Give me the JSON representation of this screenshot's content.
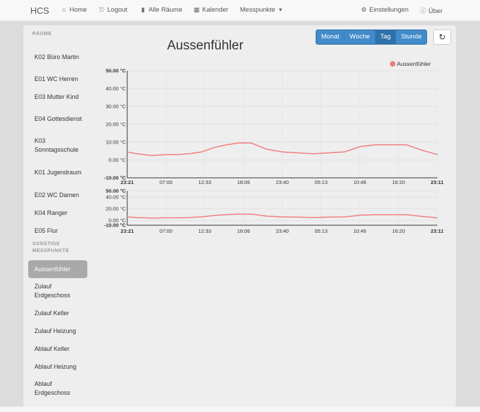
{
  "navbar": {
    "brand": "HCS",
    "items": [
      {
        "label": "Home",
        "icon": "home-icon",
        "glyph": "⌂"
      },
      {
        "label": "Logout",
        "icon": "logout-icon",
        "glyph": "⎋"
      },
      {
        "label": "Alle Räume",
        "icon": "bar-chart-icon",
        "glyph": "▮"
      },
      {
        "label": "Kalender",
        "icon": "calendar-icon",
        "glyph": "▦"
      },
      {
        "label": "Messpunkte",
        "icon": "dropdown-icon",
        "glyph": "▾"
      }
    ],
    "right_items": [
      {
        "label": "Einstellungen",
        "icon": "gear-icon",
        "glyph": "⚙"
      },
      {
        "label": "Über",
        "icon": "info-icon",
        "glyph": "ⓘ"
      }
    ]
  },
  "sidebar": {
    "rooms_heading": "RÄUME",
    "rooms": [
      {
        "label": "K02 Büro Martin"
      },
      {
        "label": "E01 WC Herren"
      },
      {
        "label": "E03 Mutter Kind"
      },
      {
        "label": "E04 Gottesdienst"
      },
      {
        "label": "K03 Sonntagsschule"
      },
      {
        "label": "K01 Jugendraum"
      },
      {
        "label": "E02 WC Damen"
      },
      {
        "label": "K04 Ranger"
      },
      {
        "label": "E05 Flur"
      }
    ],
    "other_heading": "SONSTIGE MESSPUNKTE",
    "other": [
      {
        "label": "Aussenfühler",
        "active": true
      },
      {
        "label": "Zulauf Erdgeschoss"
      },
      {
        "label": "Zulauf Keller"
      },
      {
        "label": "Zulauf Heizung"
      },
      {
        "label": "Ablauf Keller"
      },
      {
        "label": "Ablauf Heizung"
      },
      {
        "label": "Ablauf Erdgeschoss"
      }
    ]
  },
  "main": {
    "title": "Aussenfühler",
    "range_buttons": [
      {
        "label": "Monat",
        "active": false
      },
      {
        "label": "Woche",
        "active": false
      },
      {
        "label": "Tag",
        "active": true
      },
      {
        "label": "Stunde",
        "active": false
      }
    ],
    "refresh_icon": "refresh-icon"
  },
  "colors": {
    "series": "#f07c7c",
    "accent": "#428bca",
    "active_sidebar": "#a9a9a9"
  },
  "chart_data": [
    {
      "type": "line",
      "ylim": [
        -10,
        50
      ],
      "yticks": [
        "50.00 °C",
        "40.00 °C",
        "30.00 °C",
        "20.00 °C",
        "10.00 °C",
        "0.00 °C",
        "-10.00 °C"
      ],
      "xticks": [
        "23:21",
        "07:00",
        "12:33",
        "18:06",
        "23:40",
        "05:13",
        "10:46",
        "16:20",
        "23:11"
      ],
      "grid": true,
      "legend": "top-right",
      "series": [
        {
          "name": "Aussenfühler",
          "x": [
            0,
            3,
            8,
            12,
            16,
            20,
            24,
            28,
            32,
            36,
            40,
            45,
            50,
            55,
            60,
            65,
            70,
            75,
            80,
            85,
            90,
            95,
            100
          ],
          "values": [
            4.5,
            3.5,
            2.5,
            3.0,
            3.0,
            3.5,
            4.5,
            7.0,
            8.5,
            9.5,
            9.5,
            6.0,
            4.5,
            4.0,
            3.5,
            4.0,
            4.5,
            7.5,
            8.5,
            8.5,
            8.5,
            5.5,
            3.0
          ]
        }
      ]
    },
    {
      "type": "line",
      "ylim": [
        -10,
        50
      ],
      "yticks": [
        "50.00 °C",
        "40.00 °C",
        "20.00 °C",
        "0.00 °C",
        "-10.00 °C"
      ],
      "xticks": [
        "23:21",
        "07:00",
        "12:33",
        "18:06",
        "23:40",
        "05:13",
        "10:46",
        "16:20",
        "23:11"
      ],
      "grid": true,
      "series": [
        {
          "name": "Aussenfühler",
          "x": [
            0,
            3,
            8,
            12,
            16,
            20,
            24,
            28,
            32,
            36,
            40,
            45,
            50,
            55,
            60,
            65,
            70,
            75,
            80,
            85,
            90,
            95,
            100
          ],
          "values": [
            4.5,
            3.5,
            2.5,
            3.0,
            3.0,
            3.5,
            4.5,
            7.0,
            8.5,
            9.5,
            9.5,
            6.0,
            4.5,
            4.0,
            3.5,
            4.0,
            4.5,
            7.5,
            8.5,
            8.5,
            8.5,
            5.5,
            3.0
          ]
        }
      ]
    }
  ]
}
